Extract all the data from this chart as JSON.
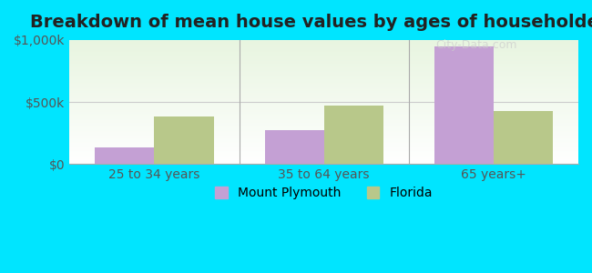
{
  "title": "Breakdown of mean house values by ages of householders",
  "categories": [
    "25 to 34 years",
    "35 to 64 years",
    "65 years+"
  ],
  "mount_plymouth": [
    130000,
    270000,
    950000
  ],
  "florida": [
    380000,
    470000,
    430000
  ],
  "mount_plymouth_color": "#c4a0d4",
  "florida_color": "#b8c88a",
  "background_outer": "#00e5ff",
  "background_inner_top": "#e8f5e0",
  "background_inner_bottom": "#ffffff",
  "ylim": [
    0,
    1000000
  ],
  "yticks": [
    0,
    500000,
    1000000
  ],
  "ytick_labels": [
    "$0",
    "$500k",
    "$1,000k"
  ],
  "legend_labels": [
    "Mount Plymouth",
    "Florida"
  ],
  "watermark": "City-Data.com",
  "bar_width": 0.35,
  "title_fontsize": 14,
  "tick_fontsize": 10,
  "legend_fontsize": 10
}
